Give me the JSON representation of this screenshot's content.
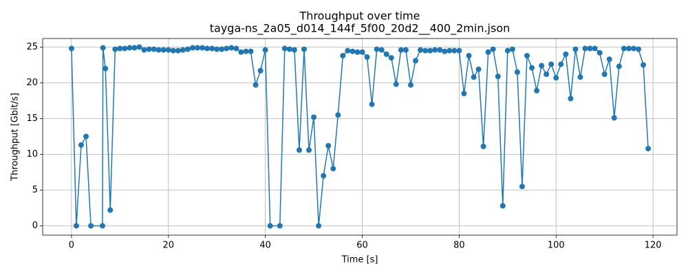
{
  "chart_data": {
    "type": "line",
    "title": [
      "Throughput over time",
      "tayga-ns_2a05_d014_144f_5f00_20d2__400_2min.json"
    ],
    "x_label": "Time [s]",
    "y_label": "Throughput [Gbit/s]",
    "x": [
      0,
      1,
      2,
      3,
      4,
      6.4,
      6.5,
      7,
      8,
      9,
      10,
      11,
      12,
      13,
      14,
      15,
      16,
      17,
      18,
      19,
      20,
      21,
      22,
      23,
      24,
      25,
      26,
      27,
      28,
      29,
      30,
      31,
      32,
      33,
      34,
      35,
      36,
      37,
      38,
      39,
      40,
      41,
      43,
      44,
      45,
      46,
      47,
      48,
      49,
      50,
      51,
      52,
      53,
      54,
      55,
      56,
      57,
      58,
      59,
      60,
      61,
      62,
      63,
      64,
      65,
      66,
      67,
      68,
      69,
      70,
      71,
      72,
      73,
      74,
      75,
      76,
      77,
      78,
      79,
      80,
      81,
      82,
      83,
      84,
      85,
      86,
      87,
      88,
      89,
      90,
      91,
      92,
      93,
      94,
      95,
      96,
      97,
      98,
      99,
      100,
      101,
      102,
      103,
      104,
      105,
      106,
      107,
      108,
      109,
      110,
      111,
      112,
      113,
      114,
      115,
      116,
      117,
      118,
      119
    ],
    "series": [
      {
        "name": "Throughput",
        "color": "#1f77b4",
        "values": [
          24.8,
          0,
          11.3,
          12.5,
          0,
          0,
          24.9,
          22.0,
          2.2,
          24.7,
          24.8,
          24.8,
          24.9,
          24.9,
          25.0,
          24.6,
          24.7,
          24.7,
          24.6,
          24.6,
          24.6,
          24.5,
          24.5,
          24.6,
          24.7,
          24.9,
          24.9,
          24.9,
          24.8,
          24.8,
          24.7,
          24.7,
          24.8,
          24.9,
          24.8,
          24.3,
          24.4,
          24.4,
          19.7,
          21.7,
          24.6,
          0,
          0,
          24.8,
          24.7,
          24.6,
          10.6,
          24.7,
          10.6,
          15.2,
          0,
          7.0,
          11.2,
          8.0,
          15.5,
          23.8,
          24.5,
          24.4,
          24.3,
          24.3,
          23.6,
          17.0,
          24.7,
          24.6,
          24.0,
          23.5,
          19.8,
          24.6,
          24.6,
          19.7,
          23.1,
          24.6,
          24.5,
          24.5,
          24.6,
          24.6,
          24.4,
          24.5,
          24.5,
          24.5,
          18.5,
          23.8,
          20.8,
          21.9,
          11.1,
          24.3,
          24.7,
          20.9,
          2.8,
          24.5,
          24.7,
          21.5,
          5.5,
          23.8,
          22.1,
          18.9,
          22.4,
          21.2,
          22.6,
          20.7,
          22.6,
          24.0,
          17.8,
          24.7,
          20.8,
          24.8,
          24.8,
          24.8,
          24.2,
          21.2,
          23.3,
          15.1,
          22.3,
          24.8,
          24.8,
          24.8,
          24.7,
          22.5,
          10.8
        ]
      }
    ],
    "xlim": [
      -5.95,
      124.95
    ],
    "ylim": [
      -1.3,
      26.2
    ],
    "xticks": [
      0,
      20,
      40,
      60,
      80,
      100,
      120
    ],
    "yticks": [
      0,
      5,
      10,
      15,
      20,
      25
    ],
    "grid": true
  }
}
